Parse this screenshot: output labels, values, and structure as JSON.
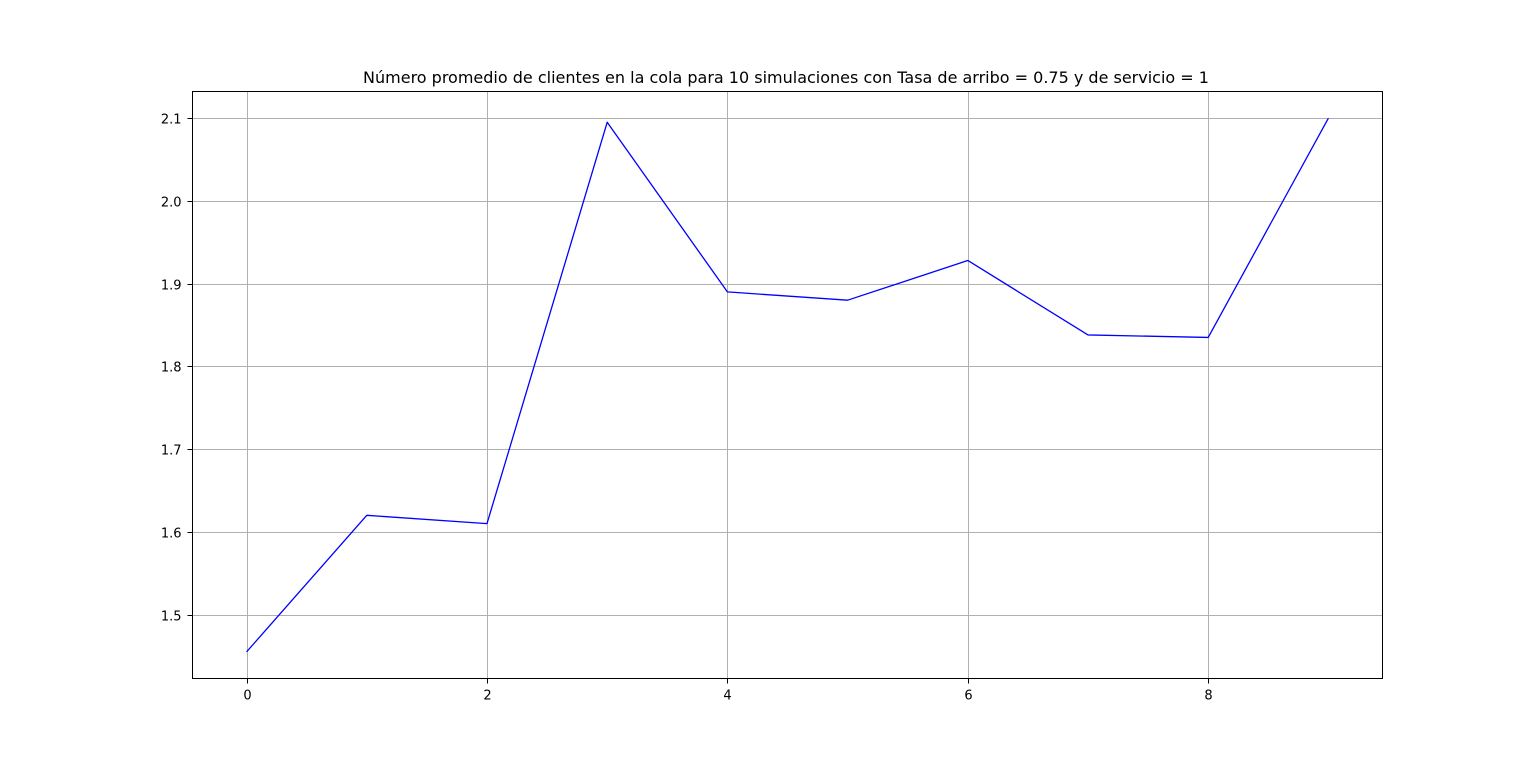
{
  "chart_data": {
    "type": "line",
    "title": "Número promedio de clientes en la cola para 10 simulaciones con Tasa de arribo = 0.75 y de servicio = 1",
    "xlabel": "",
    "ylabel": "",
    "x": [
      0,
      1,
      2,
      3,
      4,
      5,
      6,
      7,
      8,
      9
    ],
    "series": [
      {
        "values": [
          1.455,
          1.62,
          1.61,
          2.095,
          1.89,
          1.88,
          1.928,
          1.838,
          1.835,
          2.1
        ],
        "color": "#0000ff"
      }
    ],
    "xlim": [
      -0.45,
      9.45
    ],
    "ylim": [
      1.4228,
      2.1322
    ],
    "xticks": [
      0,
      2,
      4,
      6,
      8
    ],
    "xtick_labels": [
      "0",
      "2",
      "4",
      "6",
      "8"
    ],
    "yticks": [
      1.5,
      1.6,
      1.7,
      1.8,
      1.9,
      2.0,
      2.1
    ],
    "ytick_labels": [
      "1.5",
      "1.6",
      "1.7",
      "1.8",
      "1.9",
      "2.0",
      "2.1"
    ],
    "grid": true,
    "legend": "none"
  }
}
